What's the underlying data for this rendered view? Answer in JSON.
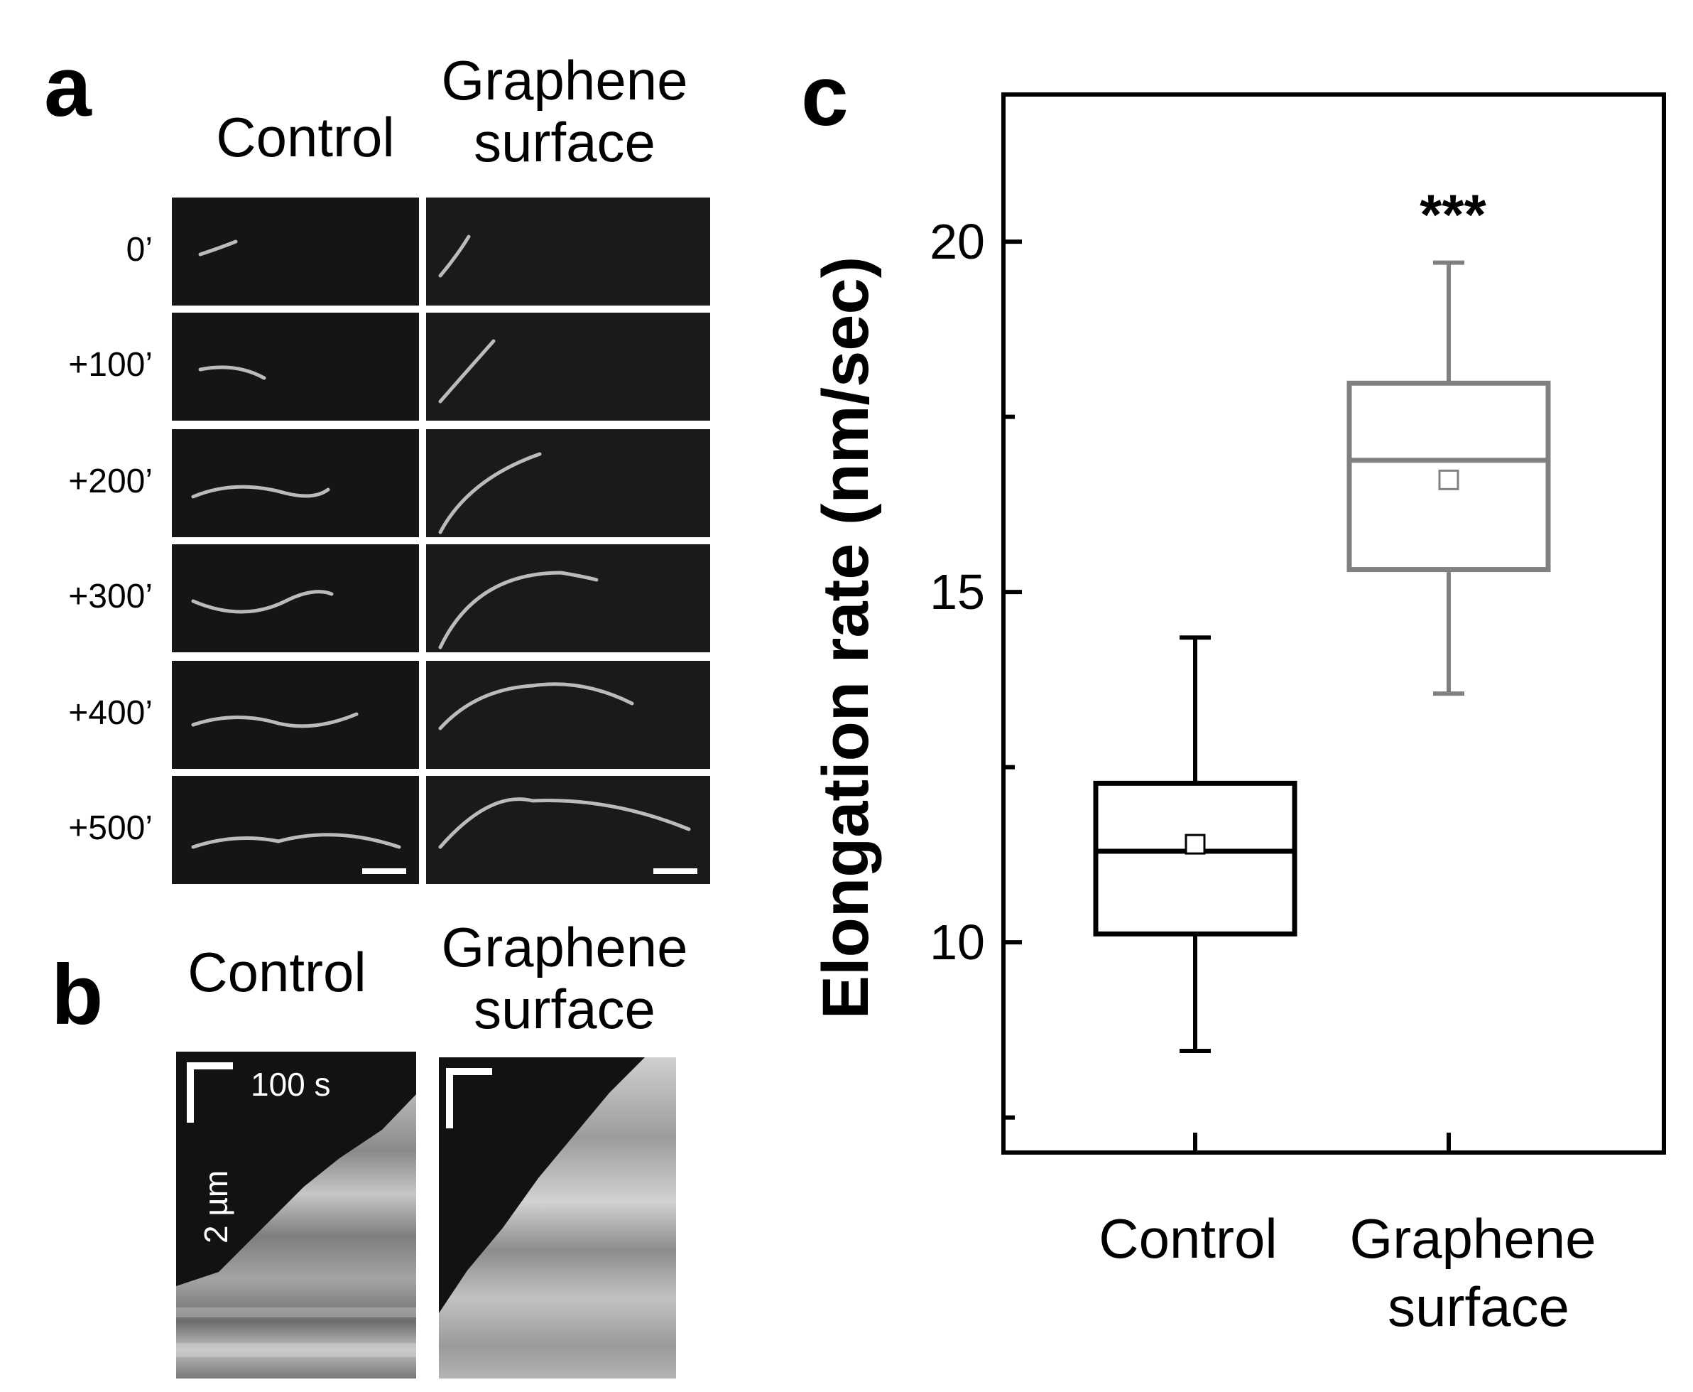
{
  "panels": {
    "a": {
      "letter": "a",
      "col_control": "Control",
      "col_graphene_line1": "Graphene",
      "col_graphene_line2": "surface",
      "time_labels": [
        "0’",
        "+100’",
        "+200’",
        "+300’",
        "+400’",
        "+500’"
      ]
    },
    "b": {
      "letter": "b",
      "col_control": "Control",
      "col_graphene_line1": "Graphene",
      "col_graphene_line2": "surface",
      "scale_time": "100 s",
      "scale_length": "2 µm"
    },
    "c": {
      "letter": "c"
    }
  },
  "chart_data": {
    "type": "box",
    "title": "",
    "xlabel": "",
    "ylabel": "Elongation rate (nm/sec)",
    "ylim": [
      7.0,
      22.1
    ],
    "yticks_major": [
      10,
      15,
      20
    ],
    "yticks_minor": [
      7.5,
      12.5,
      17.5
    ],
    "categories_line1": [
      "Control",
      "Graphene"
    ],
    "categories_line2": [
      "",
      "surface"
    ],
    "series": [
      {
        "category": "Control",
        "color": "#000000",
        "whisker_low": 8.45,
        "q1": 10.12,
        "median": 11.3,
        "q3": 12.27,
        "whisker_high": 14.35,
        "mean": 11.4
      },
      {
        "category": "Graphene surface",
        "color": "#808080",
        "whisker_low": 13.55,
        "q1": 15.32,
        "median": 16.88,
        "q3": 17.98,
        "whisker_high": 19.7,
        "mean": 16.6,
        "annotation": "***"
      }
    ]
  }
}
